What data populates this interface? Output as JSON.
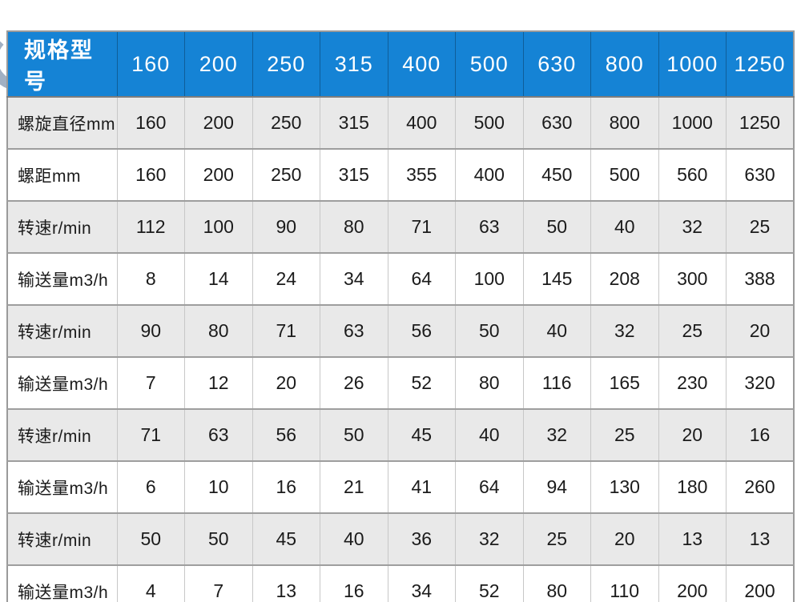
{
  "colors": {
    "header_bg": "#1583d5",
    "header_text": "#ffffff",
    "row_alt_bg": "#e9e9e9",
    "row_bg": "#ffffff",
    "outer_border": "#9a9a9a",
    "inner_vertical_border": "#c7c7c7",
    "row_separator": "#9e9e9e",
    "body_text": "#1b1b1b"
  },
  "chart_data": {
    "type": "table",
    "header_label": "规格型号",
    "columns": [
      "160",
      "200",
      "250",
      "315",
      "400",
      "500",
      "630",
      "800",
      "1000",
      "1250"
    ],
    "rows": [
      {
        "label": "螺旋直径mm",
        "values": [
          "160",
          "200",
          "250",
          "315",
          "400",
          "500",
          "630",
          "800",
          "1000",
          "1250"
        ]
      },
      {
        "label": "螺距mm",
        "values": [
          "160",
          "200",
          "250",
          "315",
          "355",
          "400",
          "450",
          "500",
          "560",
          "630"
        ]
      },
      {
        "label": "转速r/min",
        "values": [
          "112",
          "100",
          "90",
          "80",
          "71",
          "63",
          "50",
          "40",
          "32",
          "25"
        ]
      },
      {
        "label": "输送量m3/h",
        "values": [
          "8",
          "14",
          "24",
          "34",
          "64",
          "100",
          "145",
          "208",
          "300",
          "388"
        ]
      },
      {
        "label": "转速r/min",
        "values": [
          "90",
          "80",
          "71",
          "63",
          "56",
          "50",
          "40",
          "32",
          "25",
          "20"
        ]
      },
      {
        "label": "输送量m3/h",
        "values": [
          "7",
          "12",
          "20",
          "26",
          "52",
          "80",
          "116",
          "165",
          "230",
          "320"
        ]
      },
      {
        "label": "转速r/min",
        "values": [
          "71",
          "63",
          "56",
          "50",
          "45",
          "40",
          "32",
          "25",
          "20",
          "16"
        ]
      },
      {
        "label": "输送量m3/h",
        "values": [
          "6",
          "10",
          "16",
          "21",
          "41",
          "64",
          "94",
          "130",
          "180",
          "260"
        ]
      },
      {
        "label": "转速r/min",
        "values": [
          "50",
          "50",
          "45",
          "40",
          "36",
          "32",
          "25",
          "20",
          "13",
          "13"
        ]
      },
      {
        "label": "输送量m3/h",
        "values": [
          "4",
          "7",
          "13",
          "16",
          "34",
          "52",
          "80",
          "110",
          "200",
          "200"
        ]
      }
    ]
  }
}
